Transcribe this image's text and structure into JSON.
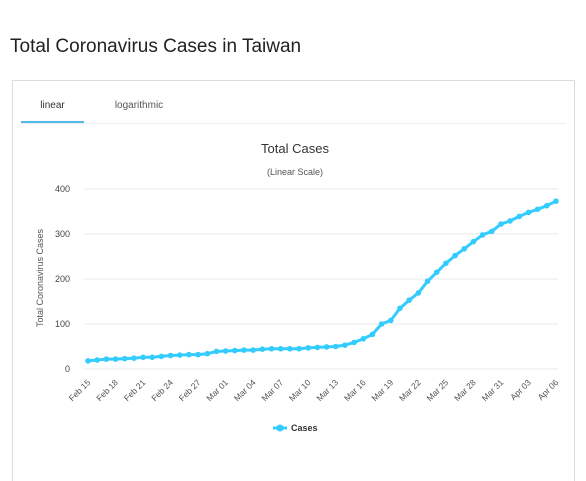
{
  "page": {
    "title": "Total Coronavirus Cases in Taiwan"
  },
  "tabs": [
    {
      "label": "linear",
      "active": true
    },
    {
      "label": "logarithmic",
      "active": false
    }
  ],
  "colors": {
    "series": "#33ccff",
    "tab_underline": "#52b8e8",
    "grid": "#e8e8e8"
  },
  "chart_data": {
    "type": "line",
    "title": "Total Cases",
    "subtitle": "(Linear Scale)",
    "ylabel": "Total Coronavirus Cases",
    "xlabel": "",
    "ylim": [
      0,
      400
    ],
    "yticks": [
      0,
      100,
      200,
      300,
      400
    ],
    "grid": true,
    "legend_position": "bottom-center",
    "x": [
      "Feb 15",
      "Feb 16",
      "Feb 17",
      "Feb 18",
      "Feb 19",
      "Feb 20",
      "Feb 21",
      "Feb 22",
      "Feb 23",
      "Feb 24",
      "Feb 25",
      "Feb 26",
      "Feb 27",
      "Feb 28",
      "Feb 29",
      "Mar 01",
      "Mar 02",
      "Mar 03",
      "Mar 04",
      "Mar 05",
      "Mar 06",
      "Mar 07",
      "Mar 08",
      "Mar 09",
      "Mar 10",
      "Mar 11",
      "Mar 12",
      "Mar 13",
      "Mar 14",
      "Mar 15",
      "Mar 16",
      "Mar 17",
      "Mar 18",
      "Mar 19",
      "Mar 20",
      "Mar 21",
      "Mar 22",
      "Mar 23",
      "Mar 24",
      "Mar 25",
      "Mar 26",
      "Mar 27",
      "Mar 28",
      "Mar 29",
      "Mar 30",
      "Mar 31",
      "Apr 01",
      "Apr 02",
      "Apr 03",
      "Apr 04",
      "Apr 05",
      "Apr 06"
    ],
    "tick_labels": [
      "Feb 15",
      "Feb 18",
      "Feb 21",
      "Feb 24",
      "Feb 27",
      "Mar 01",
      "Mar 04",
      "Mar 07",
      "Mar 10",
      "Mar 13",
      "Mar 16",
      "Mar 19",
      "Mar 22",
      "Mar 25",
      "Mar 28",
      "Mar 31",
      "Apr 03",
      "Apr 06"
    ],
    "series": [
      {
        "name": "Cases",
        "values": [
          18,
          20,
          22,
          22,
          23,
          24,
          26,
          26,
          28,
          30,
          31,
          32,
          32,
          34,
          39,
          40,
          41,
          42,
          42,
          44,
          45,
          45,
          45,
          45,
          47,
          48,
          49,
          50,
          53,
          59,
          67,
          77,
          100,
          108,
          135,
          153,
          169,
          195,
          215,
          235,
          252,
          267,
          283,
          298,
          306,
          322,
          329,
          339,
          348,
          355,
          363,
          373
        ]
      }
    ]
  }
}
